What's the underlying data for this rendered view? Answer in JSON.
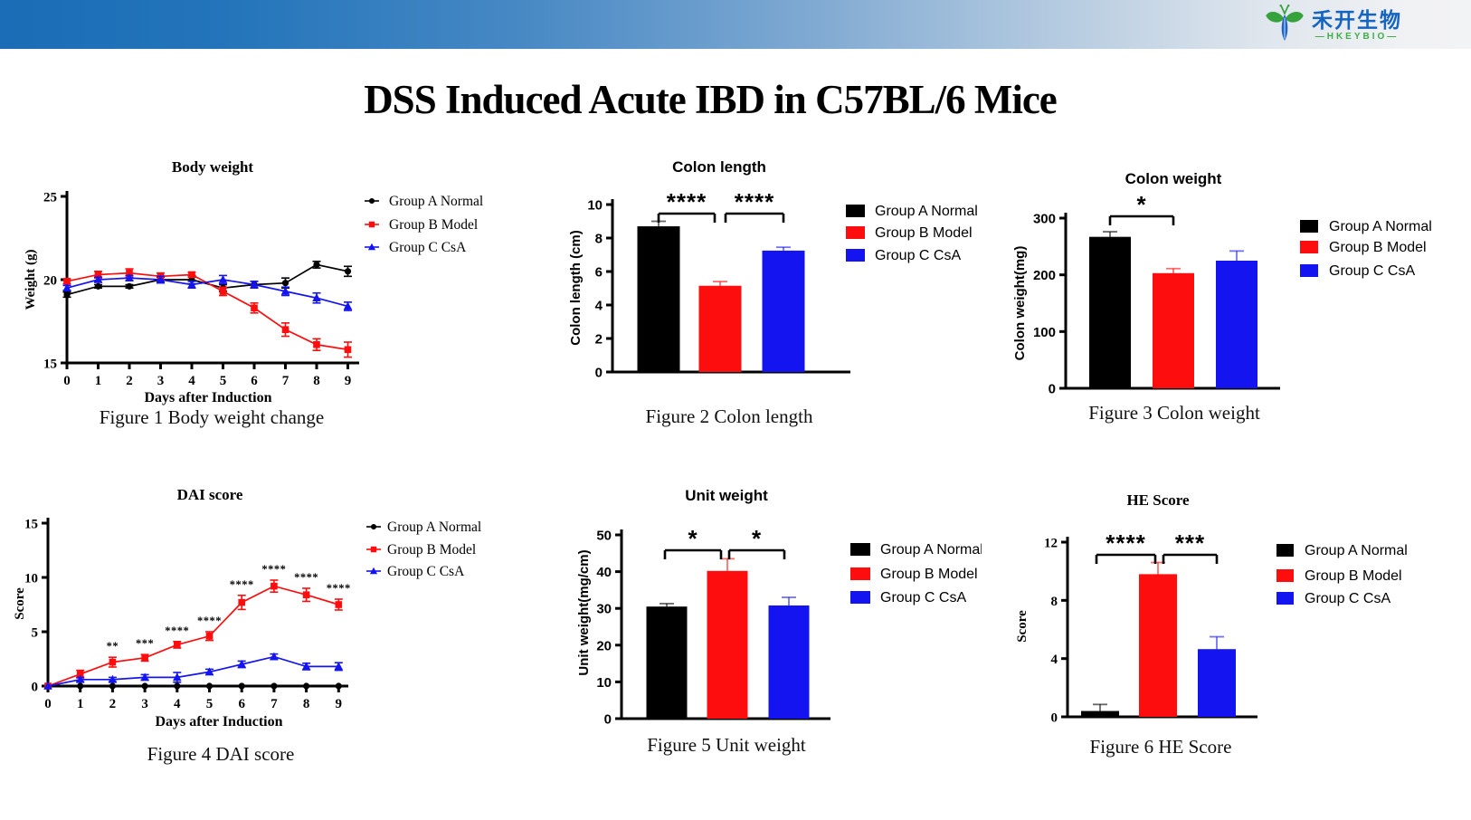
{
  "header": {
    "logo_cn": "禾开生物",
    "logo_en": "—HKEYBIO—"
  },
  "slide_title": "DSS Induced Acute IBD in C57BL/6 Mice",
  "colors": {
    "header_gradient_left": "#1a6db6",
    "header_gradient_right": "#f2f3f4",
    "group_a": "#000000",
    "group_b": "#fd0d0d",
    "group_c": "#1414f0"
  },
  "groups": [
    {
      "name": "Group A Normal",
      "color": "#000000",
      "marker": "circle"
    },
    {
      "name": "Group B Model",
      "color": "#fd0d0d",
      "marker": "square"
    },
    {
      "name": "Group C CsA",
      "color": "#1414f0",
      "marker": "triangle"
    }
  ],
  "chart_data": [
    {
      "id": "fig1",
      "type": "line",
      "title": "Body weight",
      "caption": "Figure 1 Body  weight change",
      "xlabel": "Days after Induction",
      "ylabel": "Weight (g)",
      "x": [
        0,
        1,
        2,
        3,
        4,
        5,
        6,
        7,
        8,
        9
      ],
      "ylim": [
        15,
        25
      ],
      "yticks": [
        15,
        20,
        25
      ],
      "legend_position": "right",
      "series": [
        {
          "name": "Group A Normal",
          "color": "#000000",
          "marker": "circle",
          "values": [
            19.1,
            19.6,
            19.6,
            20.0,
            20.0,
            19.5,
            19.7,
            19.8,
            20.9,
            20.5
          ],
          "errors": [
            0.15,
            0.1,
            0.1,
            0.15,
            0.25,
            0.2,
            0.2,
            0.3,
            0.2,
            0.3
          ]
        },
        {
          "name": "Group B Model",
          "color": "#fd0d0d",
          "marker": "square",
          "values": [
            19.9,
            20.3,
            20.4,
            20.2,
            20.3,
            19.3,
            18.3,
            17.0,
            16.1,
            15.8
          ],
          "errors": [
            0.15,
            0.2,
            0.25,
            0.2,
            0.15,
            0.25,
            0.3,
            0.4,
            0.35,
            0.45
          ]
        },
        {
          "name": "Group C CsA",
          "color": "#1414f0",
          "marker": "triangle",
          "values": [
            19.5,
            20.0,
            20.1,
            20.0,
            19.7,
            20.0,
            19.7,
            19.3,
            18.9,
            18.4
          ],
          "errors": [
            0.15,
            0.15,
            0.15,
            0.2,
            0.2,
            0.25,
            0.2,
            0.25,
            0.3,
            0.25
          ]
        }
      ]
    },
    {
      "id": "fig2",
      "type": "bar",
      "title": "Colon length",
      "caption": "Figure 2 Colon length",
      "ylabel": "Colon length (cm)",
      "ylim": [
        0,
        10
      ],
      "yticks": [
        0,
        2,
        4,
        6,
        8,
        10
      ],
      "legend_position": "right",
      "categories": [
        "Group A Normal",
        "Group B Model",
        "Group C CsA"
      ],
      "legend": [
        "Group A Normal",
        "Group B Model",
        "Group C CsA"
      ],
      "colors": [
        "#000000",
        "#fd0d0d",
        "#1414f0"
      ],
      "values": [
        8.7,
        5.15,
        7.25
      ],
      "errors": [
        0.3,
        0.25,
        0.2
      ],
      "significance": [
        {
          "from": 0,
          "to": 1,
          "label": "****"
        },
        {
          "from": 1,
          "to": 2,
          "label": "****"
        }
      ]
    },
    {
      "id": "fig3",
      "type": "bar",
      "title": "Colon  weight",
      "caption": "Figure 3 Colon weight",
      "ylabel": "Colon  weight(mg)",
      "ylim": [
        0,
        300
      ],
      "yticks": [
        0,
        100,
        200,
        300
      ],
      "legend_position": "right",
      "categories": [
        "Group A Normal",
        "Group B Model",
        "Group C CsA"
      ],
      "legend": [
        "Group A Normal",
        "Group B Model",
        "Group C CsA"
      ],
      "colors": [
        "#000000",
        "#fd0d0d",
        "#1414f0"
      ],
      "values": [
        267,
        203,
        225
      ],
      "errors": [
        9,
        8,
        17
      ],
      "significance": [
        {
          "from": 0,
          "to": 1,
          "label": "*"
        }
      ]
    },
    {
      "id": "fig4",
      "type": "line",
      "title": "DAI score",
      "caption": "Figure 4 DAI score",
      "xlabel": "Days after Induction",
      "ylabel": "Score",
      "x": [
        0,
        1,
        2,
        3,
        4,
        5,
        6,
        7,
        8,
        9
      ],
      "ylim": [
        0,
        15
      ],
      "yticks": [
        0,
        5,
        10,
        15
      ],
      "legend_position": "right",
      "series": [
        {
          "name": "Group A Normal",
          "color": "#000000",
          "marker": "circle",
          "values": [
            0,
            0,
            0,
            0,
            0,
            0,
            0,
            0,
            0,
            0
          ],
          "errors": [
            0,
            0,
            0,
            0,
            0,
            0,
            0,
            0,
            0,
            0
          ]
        },
        {
          "name": "Group B Model",
          "color": "#fd0d0d",
          "marker": "square",
          "values": [
            0,
            1.1,
            2.2,
            2.6,
            3.8,
            4.6,
            7.7,
            9.2,
            8.4,
            7.5
          ],
          "errors": [
            0,
            0.35,
            0.45,
            0.3,
            0.3,
            0.4,
            0.65,
            0.55,
            0.6,
            0.5
          ]
        },
        {
          "name": "Group C CsA",
          "color": "#1414f0",
          "marker": "triangle",
          "values": [
            0,
            0.6,
            0.6,
            0.8,
            0.8,
            1.3,
            2.0,
            2.7,
            1.8,
            1.8
          ],
          "errors": [
            0,
            0.2,
            0.2,
            0.25,
            0.45,
            0.25,
            0.3,
            0.25,
            0.3,
            0.35
          ]
        }
      ],
      "point_significance": [
        {
          "series": 1,
          "x": 2,
          "label": "**"
        },
        {
          "series": 1,
          "x": 3,
          "label": "***"
        },
        {
          "series": 1,
          "x": 4,
          "label": "****"
        },
        {
          "series": 1,
          "x": 5,
          "label": "****"
        },
        {
          "series": 1,
          "x": 6,
          "label": "****"
        },
        {
          "series": 1,
          "x": 7,
          "label": "****"
        },
        {
          "series": 1,
          "x": 8,
          "label": "****"
        },
        {
          "series": 1,
          "x": 9,
          "label": "****"
        }
      ]
    },
    {
      "id": "fig5",
      "type": "bar",
      "title": "Unit weight",
      "caption": "Figure 5 Unit weight",
      "ylabel": "Unit weight(mg/cm)",
      "ylim": [
        0,
        50
      ],
      "yticks": [
        0,
        10,
        20,
        30,
        40,
        50
      ],
      "legend_position": "right",
      "categories": [
        "Group A Normal",
        "Group B Model",
        "Group C CsA"
      ],
      "legend": [
        "Group A Normal",
        "Group B Model",
        "Group C CsA"
      ],
      "colors": [
        "#000000",
        "#fd0d0d",
        "#1414f0"
      ],
      "values": [
        30.5,
        40.2,
        30.8
      ],
      "errors": [
        0.8,
        3.3,
        2.2
      ],
      "significance": [
        {
          "from": 0,
          "to": 1,
          "label": "*"
        },
        {
          "from": 1,
          "to": 2,
          "label": "*"
        }
      ]
    },
    {
      "id": "fig6",
      "type": "bar",
      "title": "HE Score",
      "caption": "Figure 6 HE Score",
      "ylabel": "Score",
      "ylim": [
        0,
        12
      ],
      "yticks": [
        0,
        4,
        8,
        12
      ],
      "legend_position": "right",
      "categories": [
        "Group A Normal",
        "Group B Model",
        "Group C CsA"
      ],
      "legend": [
        "Group A Normal",
        "Group B Model",
        "Group C CsA"
      ],
      "colors": [
        "#000000",
        "#fd0d0d",
        "#1414f0"
      ],
      "values": [
        0.4,
        9.8,
        4.65
      ],
      "errors": [
        0.45,
        0.8,
        0.85
      ],
      "significance": [
        {
          "from": 0,
          "to": 1,
          "label": "****"
        },
        {
          "from": 1,
          "to": 2,
          "label": "***"
        }
      ]
    }
  ]
}
